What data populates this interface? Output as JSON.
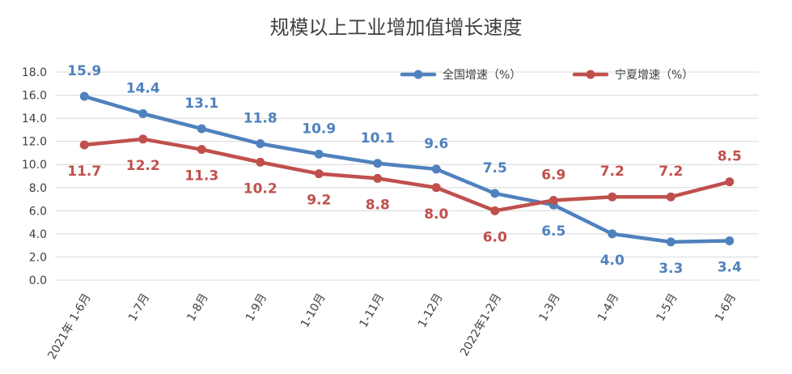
{
  "chart_data": {
    "type": "line",
    "title": "规模以上工业增加值增长速度",
    "categories": [
      "2021年 1-6月",
      "1-7月",
      "1-8月",
      "1-9月",
      "1-10月",
      "1-11月",
      "1-12月",
      "2022年1-2月",
      "1-3月",
      "1-4月",
      "1-5月",
      "1-6月"
    ],
    "ylim": [
      0,
      18
    ],
    "yticks": [
      "0.0",
      "2.0",
      "4.0",
      "6.0",
      "8.0",
      "10.0",
      "12.0",
      "14.0",
      "16.0",
      "18.0"
    ],
    "grid": true,
    "legend_position": "top-right",
    "series": [
      {
        "name": "全国增速（%）",
        "color": "#4F81BD",
        "values": [
          15.9,
          14.4,
          13.1,
          11.8,
          10.9,
          10.1,
          9.6,
          7.5,
          6.5,
          4.0,
          3.3,
          3.4
        ],
        "labels": [
          "15.9",
          "14.4",
          "13.1",
          "11.8",
          "10.9",
          "10.1",
          "9.6",
          "7.5",
          "6.5",
          "4.0",
          "3.3",
          "3.4"
        ]
      },
      {
        "name": "宁夏增速（%）",
        "color": "#C0504D",
        "values": [
          11.7,
          12.2,
          11.3,
          10.2,
          9.2,
          8.8,
          8.0,
          6.0,
          6.9,
          7.2,
          7.2,
          8.5
        ],
        "labels": [
          "11.7",
          "12.2",
          "11.3",
          "10.2",
          "9.2",
          "8.8",
          "8.0",
          "6.0",
          "6.9",
          "7.2",
          "7.2",
          "8.5"
        ]
      }
    ]
  }
}
